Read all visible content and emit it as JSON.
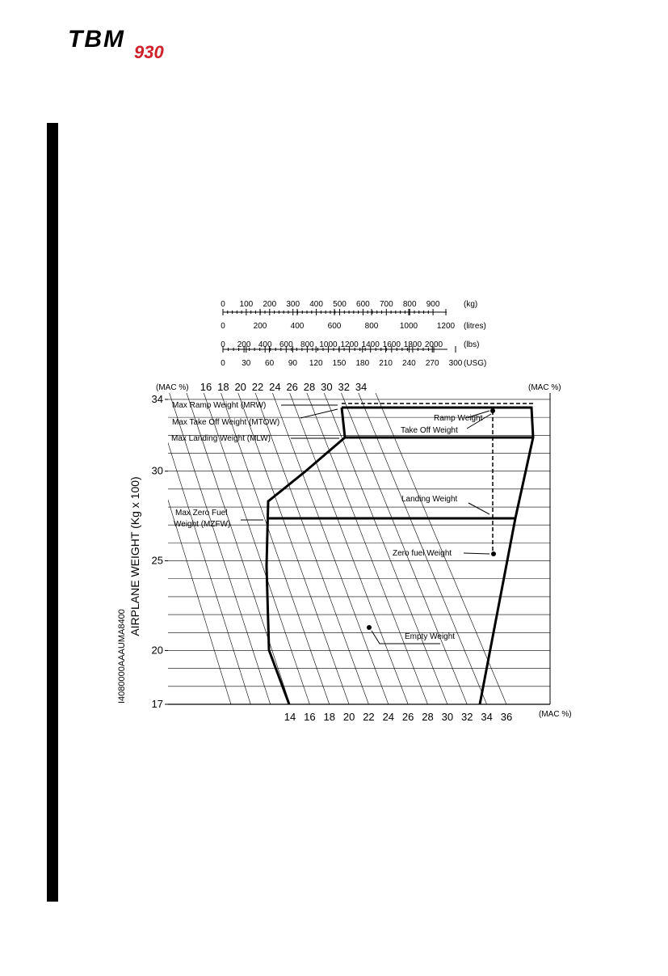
{
  "logo": {
    "brand": "TBM",
    "model": "930"
  },
  "document_code": "I4080000AAAUMA8400",
  "fuel_scales": [
    {
      "unit": "(kg)",
      "ticks": [
        0,
        100,
        200,
        300,
        400,
        500,
        600,
        700,
        800,
        900
      ]
    },
    {
      "unit": "(litres)",
      "ticks": [
        0,
        200,
        400,
        600,
        800,
        1000,
        1200
      ]
    },
    {
      "unit": "(lbs)",
      "ticks": [
        0,
        200,
        400,
        600,
        800,
        1000,
        1200,
        1400,
        1600,
        1800,
        2000
      ]
    },
    {
      "unit": "(USG)",
      "ticks": [
        0,
        30,
        60,
        90,
        120,
        150,
        180,
        210,
        240,
        270,
        300
      ]
    }
  ],
  "chart": {
    "y_axis_title": "AIRPLANE WEIGHT (Kg x 100)",
    "y_ticks": [
      17,
      20,
      25,
      30,
      34
    ],
    "top_mac_ticks": [
      16,
      18,
      20,
      22,
      24,
      26,
      28,
      30,
      32,
      34
    ],
    "bottom_mac_ticks": [
      14,
      16,
      18,
      20,
      22,
      24,
      26,
      28,
      30,
      32,
      34,
      36
    ],
    "mac_unit_labels": [
      "(MAC %)",
      "(MAC %)",
      "(MAC %)"
    ],
    "annotations": {
      "mrw": "Max Ramp Weight (MRW)",
      "mtow": "Max Take Off Weight (MTOW)",
      "mlw": "Max Landing Weight (MLW)",
      "mzfw_1": "Max Zero Fuel",
      "mzfw_2": "Weight (MZFW)",
      "ramp": "Ramp Weight",
      "takeoff": "Take Off Weight",
      "landing": "Landing Weight",
      "zero_fuel": "Zero fuel Weight",
      "empty": "Empty Weight"
    }
  }
}
